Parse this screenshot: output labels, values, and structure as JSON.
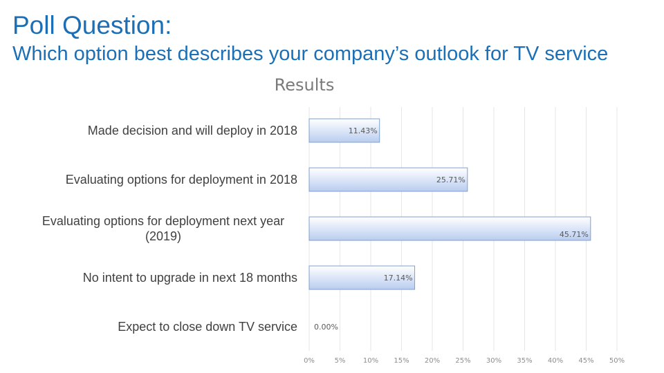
{
  "slide": {
    "title": "Poll Question:",
    "question": "Which option best describes your company’s outlook for TV service"
  },
  "colors": {
    "title": "#1c6fb5",
    "bar_top": "#ffffff",
    "bar_bottom": "#b9cdf0",
    "bar_border": "#7f9fd0"
  },
  "chart_data": {
    "type": "bar",
    "orientation": "horizontal",
    "title": "Results",
    "categories": [
      [
        "Made decision and will deploy in 2018"
      ],
      [
        "Evaluating options for deployment in 2018"
      ],
      [
        "Evaluating options for deployment next year",
        "(2019)"
      ],
      [
        "No intent to upgrade in next 18 months"
      ],
      [
        "Expect to close down TV service"
      ]
    ],
    "values": [
      11.43,
      25.71,
      45.71,
      17.14,
      0.0
    ],
    "value_labels": [
      "11.43%",
      "25.71%",
      "45.71%",
      "17.14%",
      "0.00%"
    ],
    "xlim": [
      0,
      50
    ],
    "xticks": [
      0,
      5,
      10,
      15,
      20,
      25,
      30,
      35,
      40,
      45,
      50
    ],
    "xtick_labels": [
      "0%",
      "5%",
      "10%",
      "15%",
      "20%",
      "25%",
      "30%",
      "35%",
      "40%",
      "45%",
      "50%"
    ],
    "xlabel": "",
    "ylabel": "",
    "grid": true,
    "legend": "none"
  }
}
